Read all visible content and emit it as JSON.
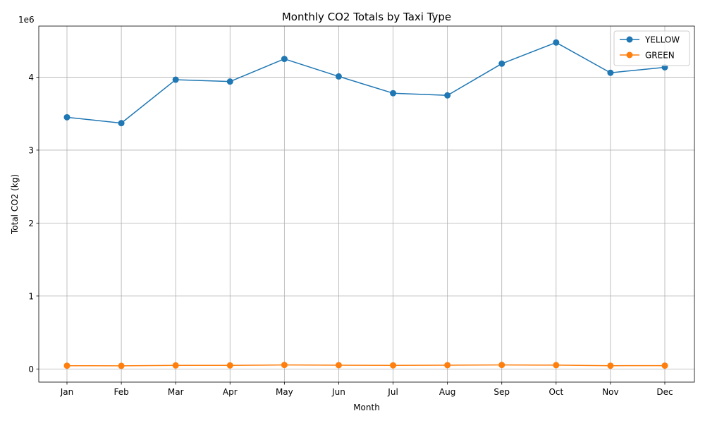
{
  "chart_data": {
    "type": "line",
    "title": "Monthly CO2 Totals by Taxi Type",
    "xlabel": "Month",
    "ylabel": "Total CO2 (kg)",
    "y_offset_label": "1e6",
    "categories": [
      "Jan",
      "Feb",
      "Mar",
      "Apr",
      "May",
      "Jun",
      "Jul",
      "Aug",
      "Sep",
      "Oct",
      "Nov",
      "Dec"
    ],
    "y_ticks": [
      0,
      1000000,
      2000000,
      3000000,
      4000000
    ],
    "y_tick_labels": [
      "0",
      "1",
      "2",
      "3",
      "4"
    ],
    "ylim": [
      -180000,
      4700000
    ],
    "grid": true,
    "legend_position": "top-right",
    "series": [
      {
        "name": "YELLOW",
        "color": "#1f77b4",
        "marker": "circle",
        "values": [
          3450000,
          3370000,
          3965000,
          3940000,
          4250000,
          4010000,
          3780000,
          3750000,
          4185000,
          4475000,
          4060000,
          4135000
        ]
      },
      {
        "name": "GREEN",
        "color": "#ff7f0e",
        "marker": "circle",
        "values": [
          45000,
          43000,
          49000,
          49000,
          55000,
          52000,
          50000,
          52000,
          55000,
          53000,
          45000,
          46000
        ]
      }
    ]
  }
}
